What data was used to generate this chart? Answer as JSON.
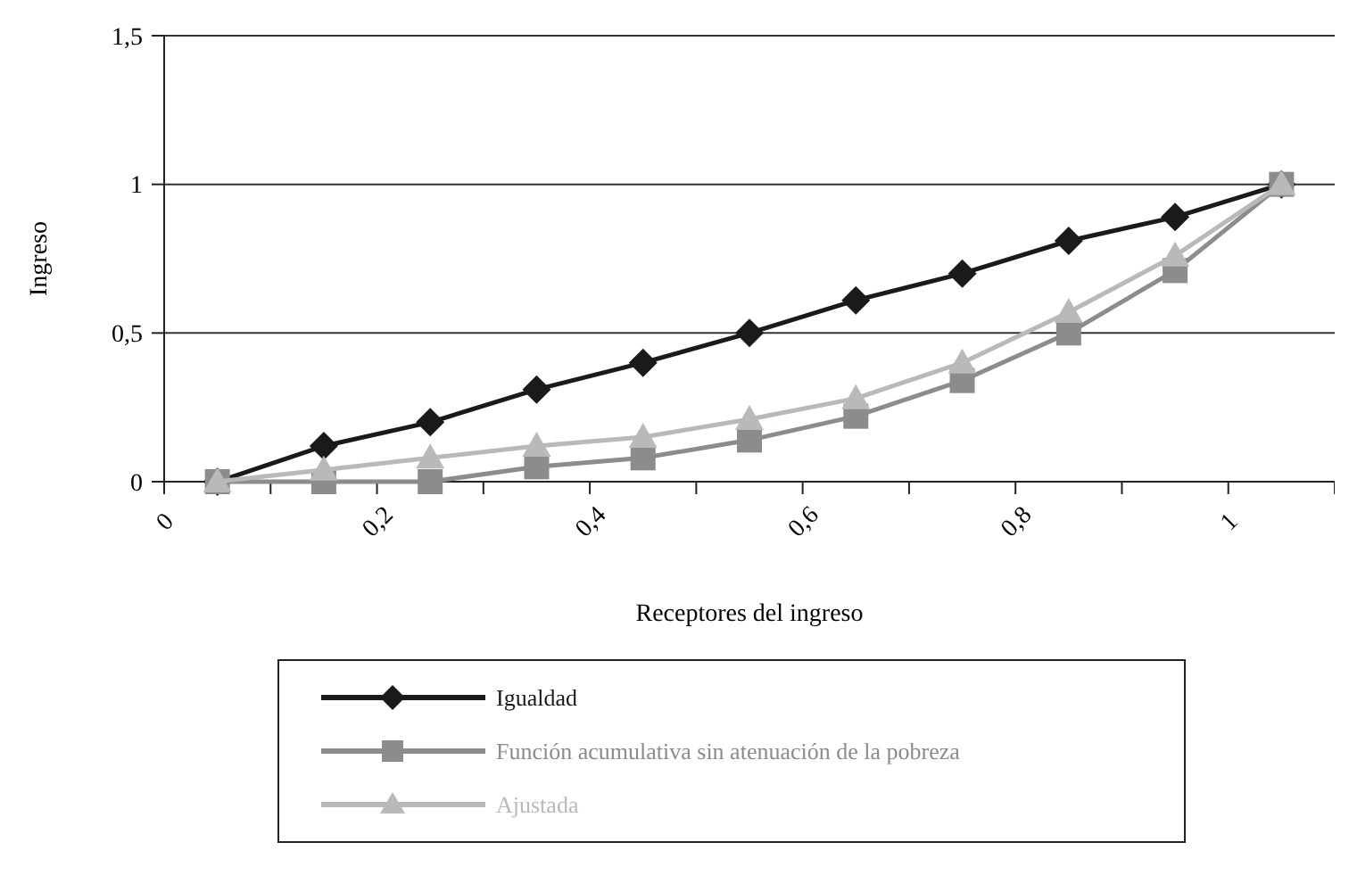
{
  "chart_data": {
    "type": "line",
    "xlabel": "Receptores del ingreso",
    "ylabel": "Ingreso",
    "x": [
      0.05,
      0.15,
      0.25,
      0.35,
      0.45,
      0.55,
      0.65,
      0.75,
      0.85,
      0.95,
      1.05
    ],
    "xlim": [
      0,
      1.1
    ],
    "xticks": [
      0,
      {
        "value": 0.1,
        "label": null
      },
      "0,2",
      {
        "value": 0.3,
        "label": null
      },
      "0,4",
      {
        "value": 0.5,
        "label": null
      },
      "0,6",
      {
        "value": 0.7,
        "label": null
      },
      "0,8",
      {
        "value": 0.9,
        "label": null
      },
      1,
      {
        "value": 1.1,
        "label": null
      }
    ],
    "ylim": [
      0,
      1.5
    ],
    "yticks": [
      0,
      {
        "value": 0.5,
        "label": "0,5"
      },
      1,
      {
        "value": 1.5,
        "label": "1,5"
      }
    ],
    "grid": "y",
    "legend": "bottom",
    "series": [
      {
        "name": "Igualdad",
        "color": "#1a1a1a",
        "marker": "diamond",
        "values": [
          0,
          0.12,
          0.2,
          0.31,
          0.4,
          0.5,
          0.61,
          0.7,
          0.81,
          0.89,
          1.0
        ]
      },
      {
        "name": "Función acumulativa sin atenuación de la pobreza",
        "color": "#8c8c8e",
        "marker": "square",
        "values": [
          0,
          0,
          0,
          0.05,
          0.08,
          0.14,
          0.22,
          0.34,
          0.5,
          0.71,
          1.0
        ]
      },
      {
        "name": "Ajustada",
        "color": "#b8b9bb",
        "marker": "triangle",
        "values": [
          0,
          0.04,
          0.08,
          0.12,
          0.15,
          0.21,
          0.28,
          0.4,
          0.57,
          0.76,
          1.0
        ]
      }
    ]
  }
}
